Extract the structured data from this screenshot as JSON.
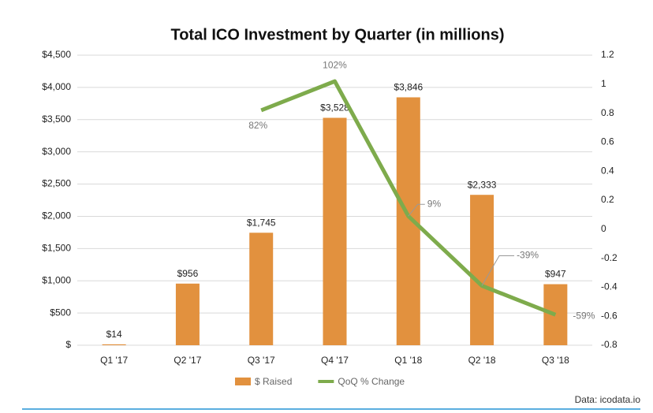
{
  "chart_data": {
    "type": "bar_line",
    "title": "Total ICO Investment by Quarter (in millions)",
    "categories": [
      "Q1 '17",
      "Q2 '17",
      "Q3 '17",
      "Q4 '17",
      "Q1 '18",
      "Q2 '18",
      "Q3 '18"
    ],
    "series": [
      {
        "name": "$ Raised",
        "type": "bar",
        "color": "#e2913e",
        "axis": "y",
        "values": [
          14,
          956,
          1745,
          3528,
          3846,
          2333,
          947
        ],
        "value_labels": [
          "$14",
          "$956",
          "$1,745",
          "$3,528",
          "$3,846",
          "$2,333",
          "$947"
        ]
      },
      {
        "name": "QoQ % Change",
        "type": "line",
        "color": "#7eab4c",
        "axis": "y2",
        "values": [
          null,
          null,
          0.82,
          1.02,
          0.09,
          -0.39,
          -0.59
        ],
        "value_labels": [
          null,
          null,
          "82%",
          "102%",
          "9%",
          "-39%",
          "-59%"
        ]
      }
    ],
    "ylim": [
      0,
      4500
    ],
    "yticks": [
      {
        "value": 0,
        "label": "$"
      },
      {
        "value": 500,
        "label": "$500"
      },
      {
        "value": 1000,
        "label": "$1,000"
      },
      {
        "value": 1500,
        "label": "$1,500"
      },
      {
        "value": 2000,
        "label": "$2,000"
      },
      {
        "value": 2500,
        "label": "$2,500"
      },
      {
        "value": 3000,
        "label": "$3,000"
      },
      {
        "value": 3500,
        "label": "$3,500"
      },
      {
        "value": 4000,
        "label": "$4,000"
      },
      {
        "value": 4500,
        "label": "$4,500"
      }
    ],
    "y2lim": [
      -0.8,
      1.2
    ],
    "y2ticks": [
      1.2,
      1,
      0.8,
      0.6,
      0.4,
      0.2,
      0,
      -0.2,
      -0.4,
      -0.6,
      -0.8
    ],
    "grid": true,
    "legend": "bottom",
    "source": "Data: icodata.io"
  }
}
